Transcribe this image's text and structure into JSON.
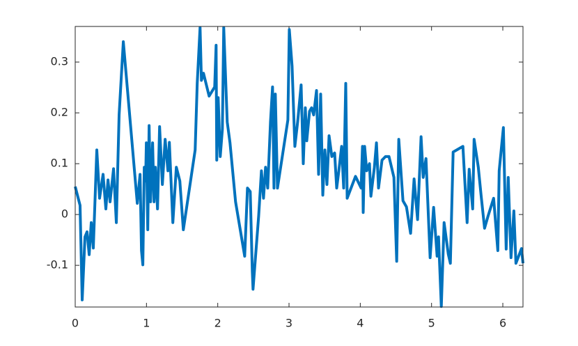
{
  "chart_data": {
    "type": "line",
    "x": [
      0,
      0.068,
      0.098,
      0.137,
      0.166,
      0.196,
      0.225,
      0.254,
      0.303,
      0.342,
      0.391,
      0.43,
      0.46,
      0.489,
      0.538,
      0.577,
      0.616,
      0.675,
      0.871,
      0.91,
      0.93,
      0.949,
      0.969,
      0.988,
      0.998,
      1.018,
      1.037,
      1.057,
      1.086,
      1.106,
      1.125,
      1.155,
      1.184,
      1.223,
      1.262,
      1.301,
      1.321,
      1.37,
      1.419,
      1.468,
      1.517,
      1.683,
      1.712,
      1.752,
      1.771,
      1.8,
      1.879,
      1.957,
      1.977,
      1.986,
      2.006,
      2.035,
      2.065,
      2.084,
      2.133,
      2.172,
      2.25,
      2.378,
      2.417,
      2.456,
      2.485,
      2.495,
      2.574,
      2.613,
      2.642,
      2.671,
      2.701,
      2.74,
      2.769,
      2.789,
      2.808,
      2.838,
      2.984,
      3.004,
      3.043,
      3.082,
      3.121,
      3.17,
      3.2,
      3.229,
      3.249,
      3.288,
      3.317,
      3.346,
      3.386,
      3.415,
      3.444,
      3.474,
      3.503,
      3.532,
      3.562,
      3.601,
      3.64,
      3.669,
      3.699,
      3.738,
      3.767,
      3.796,
      3.816,
      3.933,
      4.012,
      4.031,
      4.041,
      4.061,
      4.09,
      4.129,
      4.149,
      4.198,
      4.227,
      4.256,
      4.305,
      4.354,
      4.403,
      4.472,
      4.511,
      4.54,
      4.599,
      4.648,
      4.706,
      4.755,
      4.804,
      4.853,
      4.883,
      4.922,
      4.98,
      5.029,
      5.078,
      5.098,
      5.137,
      5.176,
      5.235,
      5.264,
      5.303,
      5.44,
      5.499,
      5.528,
      5.577,
      5.597,
      5.656,
      5.695,
      5.744,
      5.793,
      5.871,
      5.93,
      5.949,
      6.008,
      6.047,
      6.076,
      6.115,
      6.155,
      6.184,
      6.233,
      6.262,
      6.283
    ],
    "series": [
      {
        "color": "#0072bd",
        "values": [
          0.055,
          0.018,
          -0.168,
          -0.044,
          -0.034,
          -0.079,
          -0.016,
          -0.066,
          0.127,
          0.032,
          0.079,
          0.011,
          0.068,
          0.025,
          0.09,
          -0.016,
          0.196,
          0.34,
          0.022,
          0.079,
          -0.071,
          -0.099,
          0.093,
          0.066,
          0.141,
          -0.03,
          0.175,
          0.025,
          0.141,
          0.025,
          0.093,
          0.011,
          0.173,
          0.059,
          0.148,
          0.086,
          0.142,
          -0.016,
          0.093,
          0.066,
          -0.03,
          0.127,
          0.258,
          0.368,
          0.264,
          0.278,
          0.233,
          0.251,
          0.333,
          0.107,
          0.23,
          0.114,
          0.168,
          0.368,
          0.182,
          0.141,
          0.025,
          -0.082,
          0.052,
          0.045,
          -0.112,
          -0.147,
          -0.003,
          0.086,
          0.032,
          0.093,
          0.052,
          0.182,
          0.251,
          0.052,
          0.237,
          0.052,
          0.186,
          0.364,
          0.292,
          0.134,
          0.182,
          0.255,
          0.1,
          0.21,
          0.145,
          0.203,
          0.21,
          0.196,
          0.244,
          0.079,
          0.237,
          0.038,
          0.127,
          0.059,
          0.155,
          0.114,
          0.121,
          0.052,
          0.086,
          0.134,
          0.052,
          0.258,
          0.032,
          0.075,
          0.052,
          0.134,
          0.004,
          0.134,
          0.086,
          0.1,
          0.036,
          0.093,
          0.141,
          0.052,
          0.107,
          0.114,
          0.114,
          0.073,
          -0.092,
          0.148,
          0.027,
          0.015,
          -0.037,
          0.07,
          -0.01,
          0.153,
          0.073,
          0.11,
          -0.085,
          0.014,
          -0.082,
          -0.044,
          -0.181,
          -0.016,
          -0.078,
          -0.096,
          0.123,
          0.134,
          -0.016,
          0.089,
          0.011,
          0.148,
          0.093,
          0.038,
          -0.027,
          -0.003,
          0.032,
          -0.071,
          0.086,
          0.171,
          -0.068,
          0.073,
          -0.085,
          0.007,
          -0.096,
          -0.078,
          -0.067,
          -0.096
        ]
      }
    ],
    "xlim": [
      0,
      6.283
    ],
    "ylim": [
      -0.182,
      0.37
    ],
    "xticks": [
      0,
      1,
      2,
      3,
      4,
      5,
      6
    ],
    "yticks": [
      -0.1,
      0,
      0.1,
      0.2,
      0.3
    ]
  }
}
